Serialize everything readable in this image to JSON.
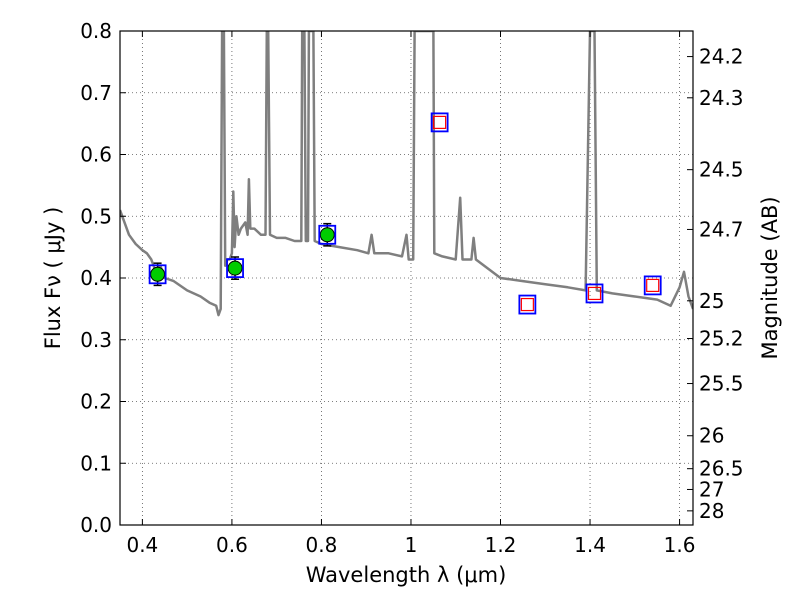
{
  "chart_data": {
    "type": "scatter",
    "xlabel": "Wavelength  λ (μm)",
    "ylabel": "Flux  Fν  ( μJy )",
    "ylabel_right": "Magnitude (AB)",
    "xlim": [
      0.35,
      1.63
    ],
    "ylim": [
      0.0,
      0.8
    ],
    "grid": true,
    "x_ticks": [
      {
        "value": 0.4,
        "label": "0.4"
      },
      {
        "value": 0.6,
        "label": "0.6"
      },
      {
        "value": 0.8,
        "label": "0.8"
      },
      {
        "value": 1.0,
        "label": "1"
      },
      {
        "value": 1.2,
        "label": "1.2"
      },
      {
        "value": 1.4,
        "label": "1.4"
      },
      {
        "value": 1.6,
        "label": "1.6"
      }
    ],
    "y_ticks": [
      {
        "value": 0.0,
        "label": "0.0"
      },
      {
        "value": 0.1,
        "label": "0.1"
      },
      {
        "value": 0.2,
        "label": "0.2"
      },
      {
        "value": 0.3,
        "label": "0.3"
      },
      {
        "value": 0.4,
        "label": "0.4"
      },
      {
        "value": 0.5,
        "label": "0.5"
      },
      {
        "value": 0.6,
        "label": "0.6"
      },
      {
        "value": 0.7,
        "label": "0.7"
      },
      {
        "value": 0.8,
        "label": "0.8"
      }
    ],
    "mag_ticks": [
      {
        "value": 24.2,
        "label": "24.2"
      },
      {
        "value": 24.3,
        "label": "24.3"
      },
      {
        "value": 24.5,
        "label": "24.5"
      },
      {
        "value": 24.7,
        "label": "24.7"
      },
      {
        "value": 25.0,
        "label": "25"
      },
      {
        "value": 25.2,
        "label": "25.2"
      },
      {
        "value": 25.5,
        "label": "25.5"
      },
      {
        "value": 26.0,
        "label": "26"
      },
      {
        "value": 26.5,
        "label": "26.5"
      },
      {
        "value": 27.0,
        "label": "27"
      },
      {
        "value": 28.0,
        "label": "28"
      }
    ],
    "model_spectrum": [
      [
        0.35,
        0.51
      ],
      [
        0.37,
        0.47
      ],
      [
        0.385,
        0.455
      ],
      [
        0.4,
        0.445
      ],
      [
        0.41,
        0.44
      ],
      [
        0.42,
        0.43
      ],
      [
        0.43,
        0.41
      ],
      [
        0.44,
        0.42
      ],
      [
        0.45,
        0.4
      ],
      [
        0.47,
        0.395
      ],
      [
        0.5,
        0.38
      ],
      [
        0.53,
        0.37
      ],
      [
        0.55,
        0.36
      ],
      [
        0.565,
        0.355
      ],
      [
        0.57,
        0.34
      ],
      [
        0.575,
        0.35
      ],
      [
        0.578,
        0.8
      ],
      [
        0.582,
        0.8
      ],
      [
        0.585,
        0.42
      ],
      [
        0.59,
        0.43
      ],
      [
        0.595,
        0.43
      ],
      [
        0.6,
        0.44
      ],
      [
        0.603,
        0.54
      ],
      [
        0.606,
        0.45
      ],
      [
        0.61,
        0.5
      ],
      [
        0.615,
        0.47
      ],
      [
        0.62,
        0.48
      ],
      [
        0.63,
        0.49
      ],
      [
        0.635,
        0.47
      ],
      [
        0.638,
        0.56
      ],
      [
        0.641,
        0.48
      ],
      [
        0.65,
        0.48
      ],
      [
        0.665,
        0.47
      ],
      [
        0.675,
        0.47
      ],
      [
        0.678,
        0.8
      ],
      [
        0.681,
        0.8
      ],
      [
        0.685,
        0.47
      ],
      [
        0.7,
        0.465
      ],
      [
        0.72,
        0.465
      ],
      [
        0.74,
        0.46
      ],
      [
        0.755,
        0.46
      ],
      [
        0.757,
        0.8
      ],
      [
        0.762,
        0.8
      ],
      [
        0.765,
        0.46
      ],
      [
        0.77,
        0.46
      ],
      [
        0.772,
        0.8
      ],
      [
        0.776,
        0.8
      ],
      [
        0.779,
        0.8
      ],
      [
        0.782,
        0.8
      ],
      [
        0.785,
        0.46
      ],
      [
        0.8,
        0.455
      ],
      [
        0.84,
        0.45
      ],
      [
        0.88,
        0.445
      ],
      [
        0.905,
        0.44
      ],
      [
        0.912,
        0.47
      ],
      [
        0.918,
        0.44
      ],
      [
        0.95,
        0.44
      ],
      [
        0.98,
        0.435
      ],
      [
        0.99,
        0.47
      ],
      [
        0.995,
        0.43
      ],
      [
        1.005,
        0.43
      ],
      [
        1.008,
        0.8
      ],
      [
        1.012,
        0.8
      ],
      [
        1.04,
        0.8
      ],
      [
        1.045,
        0.8
      ],
      [
        1.048,
        0.8
      ],
      [
        1.05,
        0.8
      ],
      [
        1.052,
        0.44
      ],
      [
        1.07,
        0.435
      ],
      [
        1.1,
        0.43
      ],
      [
        1.11,
        0.53
      ],
      [
        1.115,
        0.43
      ],
      [
        1.135,
        0.43
      ],
      [
        1.14,
        0.465
      ],
      [
        1.145,
        0.43
      ],
      [
        1.2,
        0.4
      ],
      [
        1.25,
        0.395
      ],
      [
        1.3,
        0.39
      ],
      [
        1.35,
        0.385
      ],
      [
        1.39,
        0.38
      ],
      [
        1.4,
        0.8
      ],
      [
        1.41,
        0.8
      ],
      [
        1.415,
        0.38
      ],
      [
        1.45,
        0.375
      ],
      [
        1.5,
        0.37
      ],
      [
        1.55,
        0.365
      ],
      [
        1.58,
        0.355
      ],
      [
        1.6,
        0.385
      ],
      [
        1.61,
        0.41
      ],
      [
        1.62,
        0.37
      ],
      [
        1.63,
        0.35
      ]
    ],
    "series": [
      {
        "style": "filled-circle-errorbar",
        "color": "#00cc00",
        "points": [
          {
            "x": 0.434,
            "y": 0.406,
            "err": 0.018
          },
          {
            "x": 0.607,
            "y": 0.416,
            "err": 0.018
          },
          {
            "x": 0.813,
            "y": 0.47,
            "err": 0.018
          }
        ]
      },
      {
        "style": "open-square",
        "color": "#ff0000",
        "points": [
          {
            "x": 1.064,
            "y": 0.652
          },
          {
            "x": 1.26,
            "y": 0.357
          },
          {
            "x": 1.41,
            "y": 0.375
          },
          {
            "x": 1.54,
            "y": 0.388
          }
        ]
      },
      {
        "style": "open-square-model",
        "color": "#0000ff",
        "points": [
          {
            "x": 0.434,
            "y": 0.406
          },
          {
            "x": 0.607,
            "y": 0.416
          },
          {
            "x": 0.813,
            "y": 0.47
          },
          {
            "x": 1.064,
            "y": 0.652
          },
          {
            "x": 1.26,
            "y": 0.357
          },
          {
            "x": 1.41,
            "y": 0.375
          },
          {
            "x": 1.54,
            "y": 0.388
          }
        ]
      }
    ],
    "colors": {
      "spectrum": "#7f7f7f",
      "grid": "#555555"
    }
  }
}
